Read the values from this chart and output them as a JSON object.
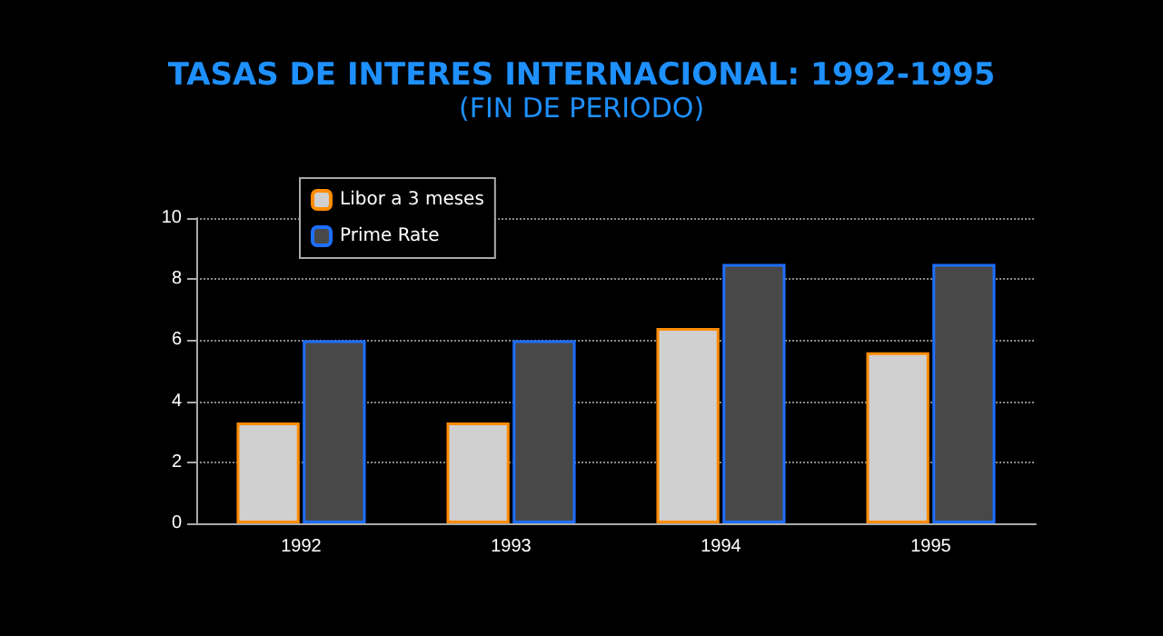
{
  "chart_data": {
    "type": "bar",
    "title": "TASAS DE INTERES INTERNACIONAL: 1992-1995",
    "subtitle": "(FIN DE PERIODO)",
    "categories": [
      "1992",
      "1993",
      "1994",
      "1995"
    ],
    "series": [
      {
        "name": "Libor a 3 meses",
        "color": "#d0d0d0",
        "values": [
          3.3,
          3.3,
          6.4,
          5.6
        ]
      },
      {
        "name": "Prime Rate",
        "color": "#484848",
        "values": [
          6,
          6,
          8.5,
          8.5
        ]
      }
    ],
    "ylim": [
      0,
      10
    ],
    "yticks": [
      0,
      2,
      4,
      6,
      8,
      10
    ],
    "grid": "y",
    "legend": "top left"
  }
}
